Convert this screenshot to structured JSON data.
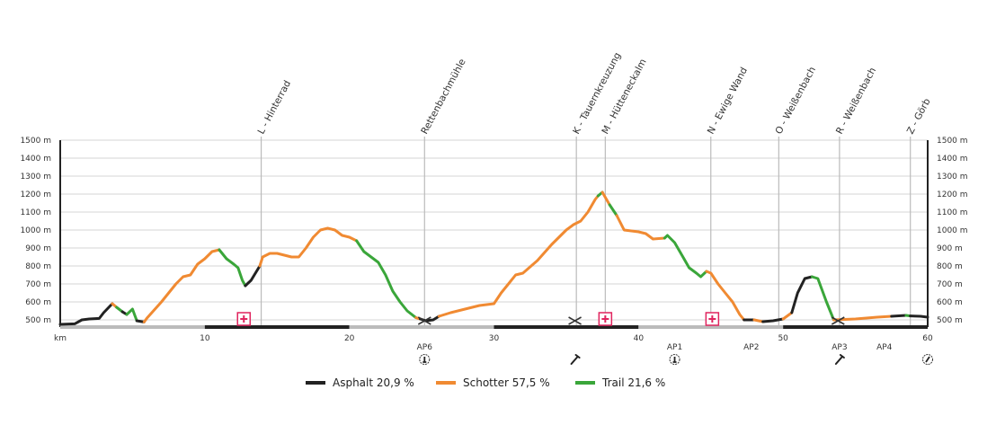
{
  "chart_data": {
    "type": "line",
    "xlabel": "km",
    "xlim": [
      0,
      60
    ],
    "ylim": [
      460,
      1500
    ],
    "x_ticks": [
      10,
      20,
      30,
      40,
      50,
      60
    ],
    "y_ticks": [
      500,
      600,
      700,
      800,
      900,
      1000,
      1100,
      1200,
      1300,
      1400,
      1500
    ],
    "y_unit": "m",
    "grid": true,
    "legend_placement": "bottom",
    "surface_colors": {
      "asphalt": "#222222",
      "schotter": "#f08a32",
      "trail": "#3aa63a"
    },
    "legend": [
      {
        "surface": "asphalt",
        "label": "Asphalt",
        "value": "20,9 %"
      },
      {
        "surface": "schotter",
        "label": "Schotter",
        "value": "57,5 %"
      },
      {
        "surface": "trail",
        "label": "Trail",
        "value": "21,6 %"
      }
    ],
    "profile": [
      {
        "surface": "asphalt",
        "points": [
          [
            0,
            475
          ],
          [
            1,
            478
          ],
          [
            1.5,
            500
          ],
          [
            2,
            505
          ],
          [
            2.7,
            508
          ],
          [
            3,
            540
          ],
          [
            3.6,
            590
          ]
        ]
      },
      {
        "surface": "schotter",
        "points": [
          [
            3.6,
            590
          ],
          [
            3.9,
            570
          ]
        ]
      },
      {
        "surface": "trail",
        "points": [
          [
            3.9,
            570
          ],
          [
            4.3,
            545
          ]
        ]
      },
      {
        "surface": "asphalt",
        "points": [
          [
            4.3,
            545
          ],
          [
            4.6,
            530
          ]
        ]
      },
      {
        "surface": "trail",
        "points": [
          [
            4.6,
            530
          ],
          [
            5,
            560
          ],
          [
            5.3,
            495
          ]
        ]
      },
      {
        "surface": "asphalt",
        "points": [
          [
            5.3,
            495
          ],
          [
            5.8,
            488
          ]
        ]
      },
      {
        "surface": "schotter",
        "points": [
          [
            5.8,
            488
          ],
          [
            6,
            510
          ],
          [
            7,
            600
          ],
          [
            8,
            700
          ],
          [
            8.5,
            740
          ],
          [
            9,
            750
          ],
          [
            9.5,
            810
          ],
          [
            10,
            840
          ],
          [
            10.5,
            880
          ],
          [
            11,
            890
          ]
        ]
      },
      {
        "surface": "trail",
        "points": [
          [
            11,
            890
          ],
          [
            11.5,
            840
          ],
          [
            12,
            810
          ],
          [
            12.3,
            790
          ],
          [
            12.6,
            720
          ],
          [
            12.8,
            690
          ]
        ]
      },
      {
        "surface": "asphalt",
        "points": [
          [
            12.8,
            690
          ],
          [
            13.2,
            720
          ],
          [
            13.8,
            800
          ]
        ]
      },
      {
        "surface": "schotter",
        "points": [
          [
            13.8,
            800
          ],
          [
            14,
            850
          ],
          [
            14.5,
            870
          ],
          [
            15,
            870
          ],
          [
            15.5,
            860
          ],
          [
            16,
            850
          ],
          [
            16.5,
            850
          ],
          [
            17,
            900
          ],
          [
            17.5,
            960
          ],
          [
            18,
            1000
          ],
          [
            18.5,
            1010
          ],
          [
            19,
            1000
          ],
          [
            19.5,
            970
          ],
          [
            20,
            960
          ],
          [
            20.5,
            940
          ]
        ]
      },
      {
        "surface": "trail",
        "points": [
          [
            20.5,
            940
          ],
          [
            21,
            880
          ],
          [
            21.5,
            850
          ],
          [
            22,
            820
          ],
          [
            22.5,
            750
          ],
          [
            23,
            660
          ],
          [
            23.5,
            600
          ],
          [
            24,
            550
          ],
          [
            24.6,
            512
          ]
        ]
      },
      {
        "surface": "schotter",
        "points": [
          [
            24.6,
            512
          ],
          [
            24.9,
            505
          ]
        ]
      },
      {
        "surface": "asphalt",
        "points": [
          [
            24.9,
            505
          ],
          [
            25.3,
            495
          ],
          [
            25.8,
            500
          ],
          [
            26.2,
            520
          ]
        ]
      },
      {
        "surface": "schotter",
        "points": [
          [
            26.2,
            520
          ],
          [
            27,
            540
          ],
          [
            28,
            560
          ],
          [
            29,
            580
          ],
          [
            30,
            590
          ],
          [
            30.5,
            650
          ],
          [
            31,
            700
          ],
          [
            31.5,
            750
          ],
          [
            32,
            760
          ],
          [
            33,
            830
          ],
          [
            34,
            920
          ],
          [
            35,
            1000
          ],
          [
            35.5,
            1030
          ],
          [
            36,
            1050
          ],
          [
            36.5,
            1100
          ],
          [
            37,
            1170
          ],
          [
            37.2,
            1190
          ]
        ]
      },
      {
        "surface": "trail",
        "points": [
          [
            37.2,
            1190
          ],
          [
            37.5,
            1210
          ]
        ]
      },
      {
        "surface": "schotter",
        "points": [
          [
            37.5,
            1210
          ],
          [
            38,
            1140
          ]
        ]
      },
      {
        "surface": "trail",
        "points": [
          [
            38,
            1140
          ],
          [
            38.5,
            1080
          ]
        ]
      },
      {
        "surface": "schotter",
        "points": [
          [
            38.5,
            1080
          ],
          [
            39,
            1000
          ],
          [
            40,
            990
          ],
          [
            40.5,
            980
          ],
          [
            41,
            950
          ],
          [
            41.8,
            955
          ]
        ]
      },
      {
        "surface": "trail",
        "points": [
          [
            41.8,
            955
          ],
          [
            42,
            970
          ],
          [
            42.5,
            930
          ],
          [
            43,
            860
          ],
          [
            43.5,
            790
          ],
          [
            44,
            760
          ],
          [
            44.3,
            740
          ],
          [
            44.7,
            770
          ]
        ]
      },
      {
        "surface": "schotter",
        "points": [
          [
            44.7,
            770
          ],
          [
            45,
            760
          ],
          [
            45.5,
            700
          ],
          [
            46,
            650
          ],
          [
            46.5,
            600
          ],
          [
            47,
            530
          ],
          [
            47.3,
            500
          ]
        ]
      },
      {
        "surface": "asphalt",
        "points": [
          [
            47.3,
            500
          ],
          [
            48,
            500
          ]
        ]
      },
      {
        "surface": "schotter",
        "points": [
          [
            48,
            500
          ],
          [
            48.6,
            490
          ]
        ]
      },
      {
        "surface": "asphalt",
        "points": [
          [
            48.6,
            490
          ],
          [
            49.3,
            495
          ],
          [
            50,
            505
          ]
        ]
      },
      {
        "surface": "schotter",
        "points": [
          [
            50,
            505
          ],
          [
            50.6,
            540
          ]
        ]
      },
      {
        "surface": "asphalt",
        "points": [
          [
            50.6,
            540
          ],
          [
            51,
            650
          ],
          [
            51.5,
            730
          ],
          [
            52,
            740
          ]
        ]
      },
      {
        "surface": "trail",
        "points": [
          [
            52,
            740
          ],
          [
            52.4,
            730
          ],
          [
            53,
            600
          ],
          [
            53.5,
            500
          ]
        ]
      },
      {
        "surface": "schotter",
        "points": [
          [
            53.5,
            500
          ],
          [
            55,
            505
          ],
          [
            56.5,
            515
          ],
          [
            57.5,
            520
          ]
        ]
      },
      {
        "surface": "asphalt",
        "points": [
          [
            57.5,
            520
          ],
          [
            58.5,
            525
          ]
        ]
      },
      {
        "surface": "trail",
        "points": [
          [
            58.5,
            525
          ],
          [
            58.8,
            522
          ]
        ]
      },
      {
        "surface": "asphalt",
        "points": [
          [
            58.8,
            522
          ],
          [
            59.5,
            520
          ],
          [
            60,
            515
          ]
        ]
      }
    ],
    "waypoints": [
      {
        "km": 13.9,
        "label": "L - Hinterrad"
      },
      {
        "km": 25.2,
        "label": "Rettenbachmühle"
      },
      {
        "km": 35.7,
        "label": "K - Tauernkreuzung"
      },
      {
        "km": 37.7,
        "label": "M - Hütteneckalm"
      },
      {
        "km": 45.0,
        "label": "N - Ewige Wand"
      },
      {
        "km": 49.7,
        "label": "O - Weißenbach"
      },
      {
        "km": 53.9,
        "label": "R - Weißenbach"
      },
      {
        "km": 58.8,
        "label": "Z - Görb"
      }
    ],
    "first_aid_markers": [
      12.7,
      37.7,
      45.1
    ],
    "crossing_markers": [
      25.2,
      35.6,
      53.8
    ],
    "aid_points": [
      {
        "km": 25.2,
        "label": "AP6",
        "icon": "station-icon"
      },
      {
        "km": 35.6,
        "label": "",
        "icon": "wrench-icon"
      },
      {
        "km": 42.5,
        "label": "AP1",
        "icon": "station-icon"
      },
      {
        "km": 47.8,
        "label": "AP2",
        "icon": ""
      },
      {
        "km": 53.9,
        "label": "AP3",
        "icon": "wrench-icon"
      },
      {
        "km": 57.0,
        "label": "AP4",
        "icon": ""
      },
      {
        "km": 60,
        "label": "",
        "icon": "finish-icon"
      }
    ]
  }
}
